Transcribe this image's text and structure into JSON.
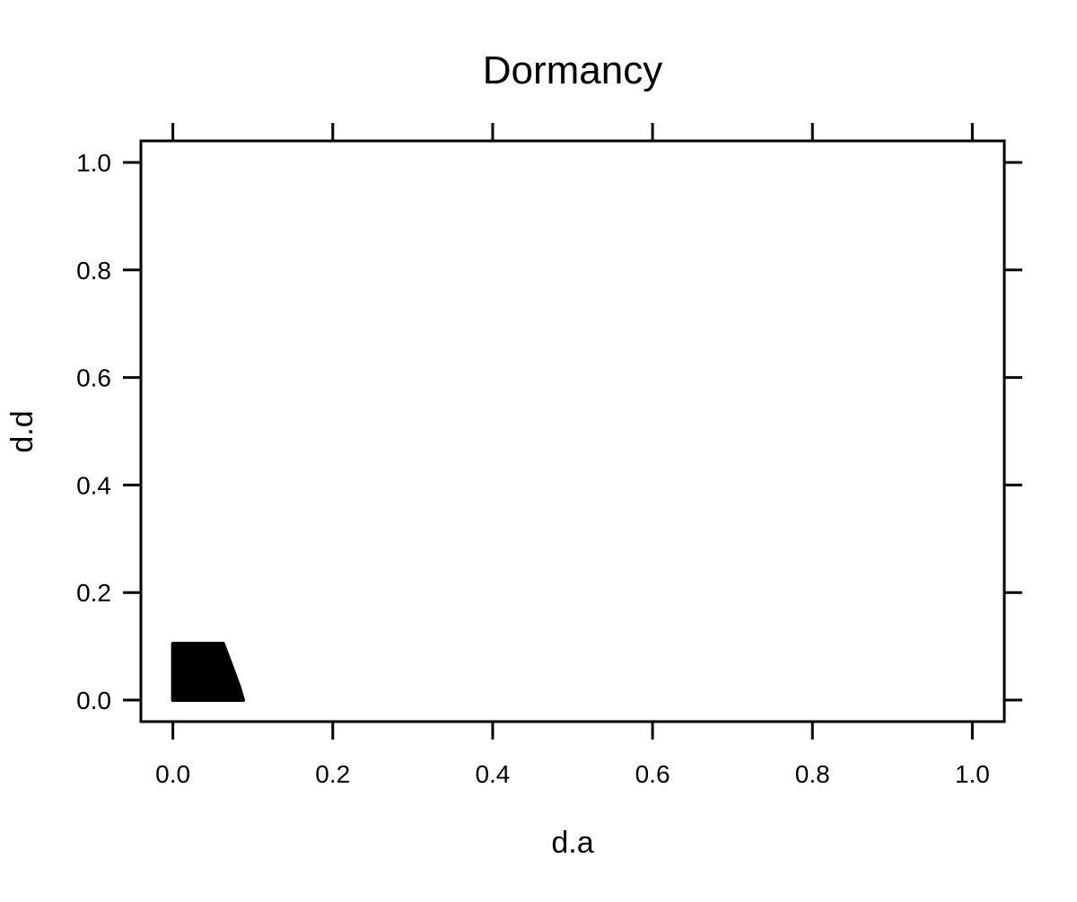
{
  "chart_data": {
    "type": "area",
    "title": "Dormancy",
    "xlabel": "d.a",
    "ylabel": "d.d",
    "xlim": [
      -0.04,
      1.04
    ],
    "ylim": [
      -0.04,
      1.04
    ],
    "x_ticks": [
      0.0,
      0.2,
      0.4,
      0.6,
      0.8,
      1.0
    ],
    "y_ticks": [
      0.0,
      0.2,
      0.4,
      0.6,
      0.8,
      1.0
    ],
    "x_tick_labels": [
      "0.0",
      "0.2",
      "0.4",
      "0.6",
      "0.8",
      "1.0"
    ],
    "y_tick_labels": [
      "0.0",
      "0.2",
      "0.4",
      "0.6",
      "0.8",
      "1.0"
    ],
    "grid": false,
    "fill_color": "#000000",
    "region": [
      {
        "x": 0.0,
        "y": 0.0
      },
      {
        "x": 0.0,
        "y": 0.105
      },
      {
        "x": 0.063,
        "y": 0.105
      },
      {
        "x": 0.073,
        "y": 0.065
      },
      {
        "x": 0.083,
        "y": 0.025
      },
      {
        "x": 0.088,
        "y": 0.0
      }
    ]
  }
}
